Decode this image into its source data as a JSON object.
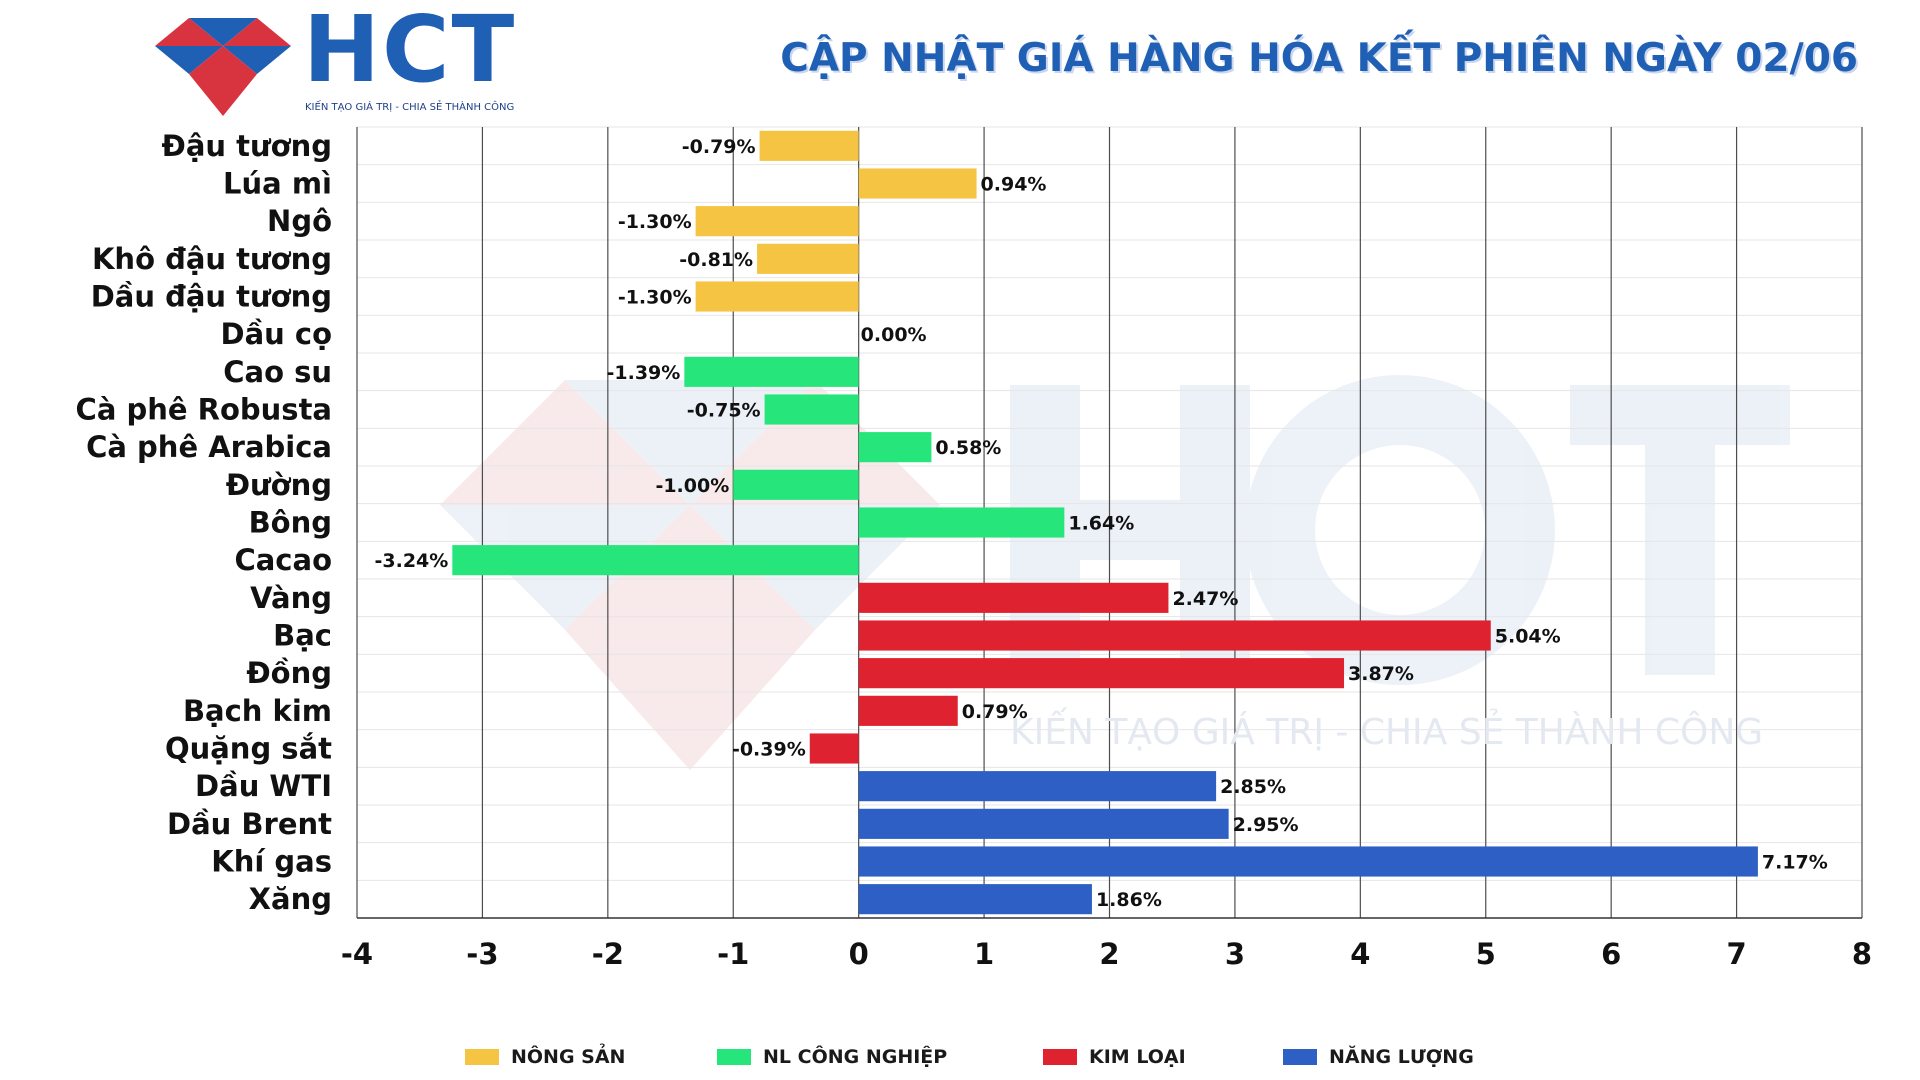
{
  "header": {
    "logo_text": "HCT",
    "logo_tagline": "KIẾN TẠO GIÁ TRỊ - CHIA SẺ THÀNH CÔNG",
    "title": "CẬP NHẬT GIÁ HÀNG HÓA KẾT PHIÊN NGÀY 02/06"
  },
  "watermark": {
    "text": "KIẾN TẠO GIÁ TRỊ - CHIA SẺ THÀNH CÔNG"
  },
  "colors": {
    "nong_san": "#f5c443",
    "nl_cong_nghiep": "#26e57a",
    "kim_loai": "#de2230",
    "nang_luong": "#2e5fc4",
    "brand_blue": "#1f5fb4",
    "brand_red": "#d8343f"
  },
  "legend": [
    {
      "label": "NÔNG SẢN",
      "color": "#f5c443"
    },
    {
      "label": "NL CÔNG NGHIỆP",
      "color": "#26e57a"
    },
    {
      "label": "KIM LOẠI",
      "color": "#de2230"
    },
    {
      "label": "NĂNG LƯỢNG",
      "color": "#2e5fc4"
    }
  ],
  "chart_data": {
    "type": "bar",
    "orientation": "horizontal",
    "title": "CẬP NHẬT GIÁ HÀNG HÓA KẾT PHIÊN NGÀY 02/06",
    "xlim": [
      -4,
      8
    ],
    "x_ticks": [
      "-4",
      "-3",
      "-2",
      "-1",
      "0",
      "1",
      "2",
      "3",
      "4",
      "5",
      "6",
      "7",
      "8"
    ],
    "grid": true,
    "legend_position": "bottom",
    "categories": [
      "Đậu tương",
      "Lúa mì",
      "Ngô",
      "Khô đậu tương",
      "Dầu đậu tương",
      "Dầu cọ",
      "Cao su",
      "Cà phê Robusta",
      "Cà phê Arabica",
      "Đường",
      "Bông",
      "Cacao",
      "Vàng",
      "Bạc",
      "Đồng",
      "Bạch kim",
      "Quặng sắt",
      "Dầu WTI",
      "Dầu Brent",
      "Khí gas",
      "Xăng"
    ],
    "values": [
      -0.79,
      0.94,
      -1.3,
      -0.81,
      -1.3,
      0.0,
      -1.39,
      -0.75,
      0.58,
      -1.0,
      1.64,
      -3.24,
      2.47,
      5.04,
      3.87,
      0.79,
      -0.39,
      2.85,
      2.95,
      7.17,
      1.86
    ],
    "value_labels": [
      "-0.79%",
      "0.94%",
      "-1.30%",
      "-0.81%",
      "-1.30%",
      "0.00%",
      "-1.39%",
      "-0.75%",
      "0.58%",
      "-1.00%",
      "1.64%",
      "-3.24%",
      "2.47%",
      "5.04%",
      "3.87%",
      "0.79%",
      "-0.39%",
      "2.85%",
      "2.95%",
      "7.17%",
      "1.86%"
    ],
    "groups": [
      "NÔNG SẢN",
      "NÔNG SẢN",
      "NÔNG SẢN",
      "NÔNG SẢN",
      "NÔNG SẢN",
      "NÔNG SẢN",
      "NL CÔNG NGHIỆP",
      "NL CÔNG NGHIỆP",
      "NL CÔNG NGHIỆP",
      "NL CÔNG NGHIỆP",
      "NL CÔNG NGHIỆP",
      "NL CÔNG NGHIỆP",
      "KIM LOẠI",
      "KIM LOẠI",
      "KIM LOẠI",
      "KIM LOẠI",
      "KIM LOẠI",
      "NĂNG LƯỢNG",
      "NĂNG LƯỢNG",
      "NĂNG LƯỢNG",
      "NĂNG LƯỢNG"
    ]
  }
}
